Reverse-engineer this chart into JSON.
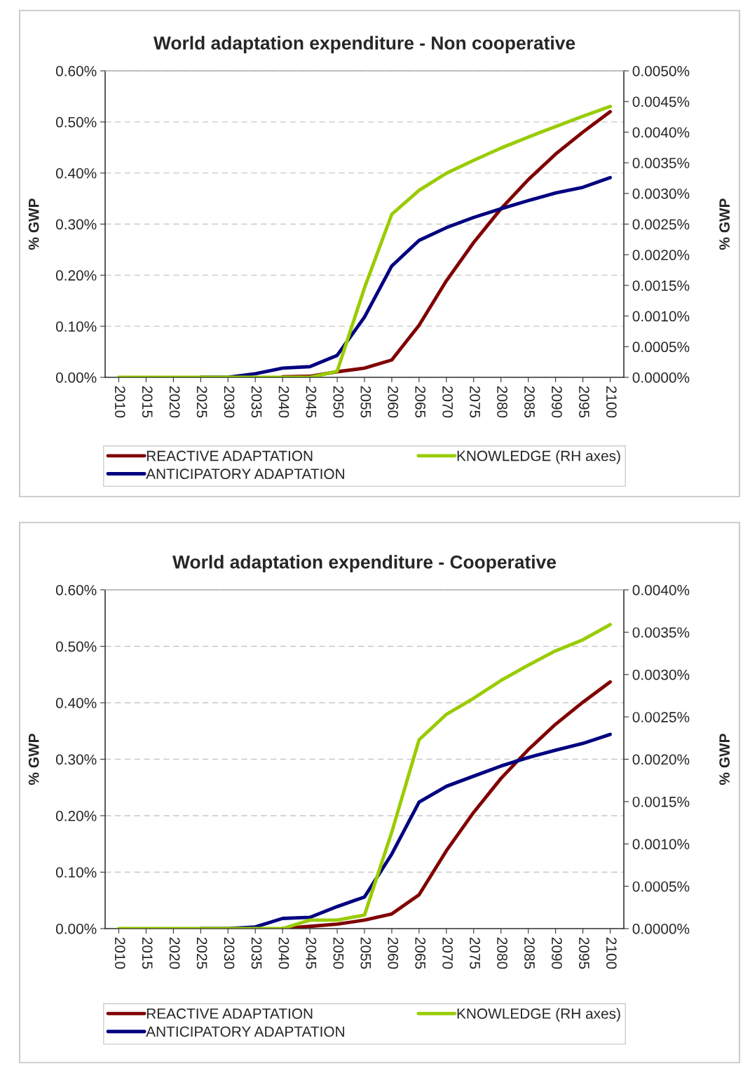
{
  "chart_data": [
    {
      "type": "line",
      "title": "World adaptation expenditure - Non cooperative",
      "ylabel": "% GWP",
      "y2label": "% GWP",
      "categories": [
        "2010",
        "2015",
        "2020",
        "2025",
        "2030",
        "2035",
        "2040",
        "2045",
        "2050",
        "2055",
        "2060",
        "2065",
        "2070",
        "2075",
        "2080",
        "2085",
        "2090",
        "2095",
        "2100"
      ],
      "series": [
        {
          "name": "REACTIVE ADAPTATION",
          "color": "#800000",
          "values": [
            null,
            null,
            null,
            null,
            null,
            null,
            0.001,
            0.002,
            0.011,
            0.018,
            0.034,
            0.102,
            0.189,
            0.264,
            0.33,
            0.387,
            0.437,
            0.48,
            0.52
          ]
        },
        {
          "name": "ANTICIPATORY ADAPTATION",
          "color": "#000080",
          "values": [
            null,
            null,
            null,
            0,
            0,
            0.007,
            0.018,
            0.021,
            0.043,
            0.118,
            0.218,
            0.268,
            0.293,
            0.313,
            0.33,
            0.346,
            0.361,
            0.372,
            0.391
          ]
        },
        {
          "name": "KNOWLEDGE (RH axes)",
          "color": "#99cc00",
          "axis": "y2",
          "values": [
            0,
            0,
            0,
            0,
            0,
            0,
            0,
            0,
            0.0001,
            0.00146,
            0.00266,
            0.00305,
            0.00333,
            0.00354,
            0.00374,
            0.00392,
            0.00409,
            0.00426,
            0.00442
          ]
        }
      ],
      "ylim": [
        0,
        0.6
      ],
      "yticks": [
        {
          "value": 0,
          "label": "0.00%"
        },
        {
          "value": 0.1,
          "label": "0.10%"
        },
        {
          "value": 0.2,
          "label": "0.20%"
        },
        {
          "value": 0.3,
          "label": "0.30%"
        },
        {
          "value": 0.4,
          "label": "0.40%"
        },
        {
          "value": 0.5,
          "label": "0.50%"
        },
        {
          "value": 0.6,
          "label": "0.60%"
        }
      ],
      "y2lim": [
        0,
        0.005
      ],
      "y2ticks": [
        {
          "value": 0,
          "label": "0.0000%"
        },
        {
          "value": 0.0005,
          "label": "0.0005%"
        },
        {
          "value": 0.001,
          "label": "0.0010%"
        },
        {
          "value": 0.0015,
          "label": "0.0015%"
        },
        {
          "value": 0.002,
          "label": "0.0020%"
        },
        {
          "value": 0.0025,
          "label": "0.0025%"
        },
        {
          "value": 0.003,
          "label": "0.0030%"
        },
        {
          "value": 0.0035,
          "label": "0.0035%"
        },
        {
          "value": 0.004,
          "label": "0.0040%"
        },
        {
          "value": 0.0045,
          "label": "0.0045%"
        },
        {
          "value": 0.005,
          "label": "0.0050%"
        }
      ],
      "grid": "y",
      "legend": "bottom",
      "line_style": "solid"
    },
    {
      "type": "line",
      "title": "World adaptation expenditure - Cooperative",
      "ylabel": "% GWP",
      "y2label": "% GWP",
      "categories": [
        "2010",
        "2015",
        "2020",
        "2025",
        "2030",
        "2035",
        "2040",
        "2045",
        "2050",
        "2055",
        "2060",
        "2065",
        "2070",
        "2075",
        "2080",
        "2085",
        "2090",
        "2095",
        "2100"
      ],
      "series": [
        {
          "name": "REACTIVE ADAPTATION",
          "color": "#800000",
          "values": [
            null,
            null,
            null,
            null,
            null,
            null,
            0,
            0.004,
            0.008,
            0.015,
            0.026,
            0.06,
            0.138,
            0.206,
            0.266,
            0.317,
            0.362,
            0.401,
            0.437
          ]
        },
        {
          "name": "ANTICIPATORY ADAPTATION",
          "color": "#000080",
          "values": [
            null,
            null,
            null,
            0,
            0,
            0.003,
            0.018,
            0.02,
            0.039,
            0.056,
            0.132,
            0.224,
            0.252,
            0.27,
            0.288,
            0.303,
            0.316,
            0.328,
            0.344
          ]
        },
        {
          "name": "KNOWLEDGE (RH axes)",
          "color": "#99cc00",
          "axis": "y2",
          "values": [
            0,
            0,
            0,
            0,
            0,
            0,
            0,
            0.0001,
            0.0001,
            0.00016,
            0.00114,
            0.00223,
            0.00253,
            0.00272,
            0.00293,
            0.00311,
            0.00328,
            0.00341,
            0.00359
          ]
        }
      ],
      "ylim": [
        0,
        0.6
      ],
      "yticks": [
        {
          "value": 0,
          "label": "0.00%"
        },
        {
          "value": 0.1,
          "label": "0.10%"
        },
        {
          "value": 0.2,
          "label": "0.20%"
        },
        {
          "value": 0.3,
          "label": "0.30%"
        },
        {
          "value": 0.4,
          "label": "0.40%"
        },
        {
          "value": 0.5,
          "label": "0.50%"
        },
        {
          "value": 0.6,
          "label": "0.60%"
        }
      ],
      "y2lim": [
        0,
        0.004
      ],
      "y2ticks": [
        {
          "value": 0,
          "label": "0.0000%"
        },
        {
          "value": 0.0005,
          "label": "0.0005%"
        },
        {
          "value": 0.001,
          "label": "0.0010%"
        },
        {
          "value": 0.0015,
          "label": "0.0015%"
        },
        {
          "value": 0.002,
          "label": "0.0020%"
        },
        {
          "value": 0.0025,
          "label": "0.0025%"
        },
        {
          "value": 0.003,
          "label": "0.0030%"
        },
        {
          "value": 0.0035,
          "label": "0.0035%"
        },
        {
          "value": 0.004,
          "label": "0.0040%"
        }
      ],
      "grid": "y",
      "legend": "bottom",
      "line_style": "solid"
    }
  ]
}
